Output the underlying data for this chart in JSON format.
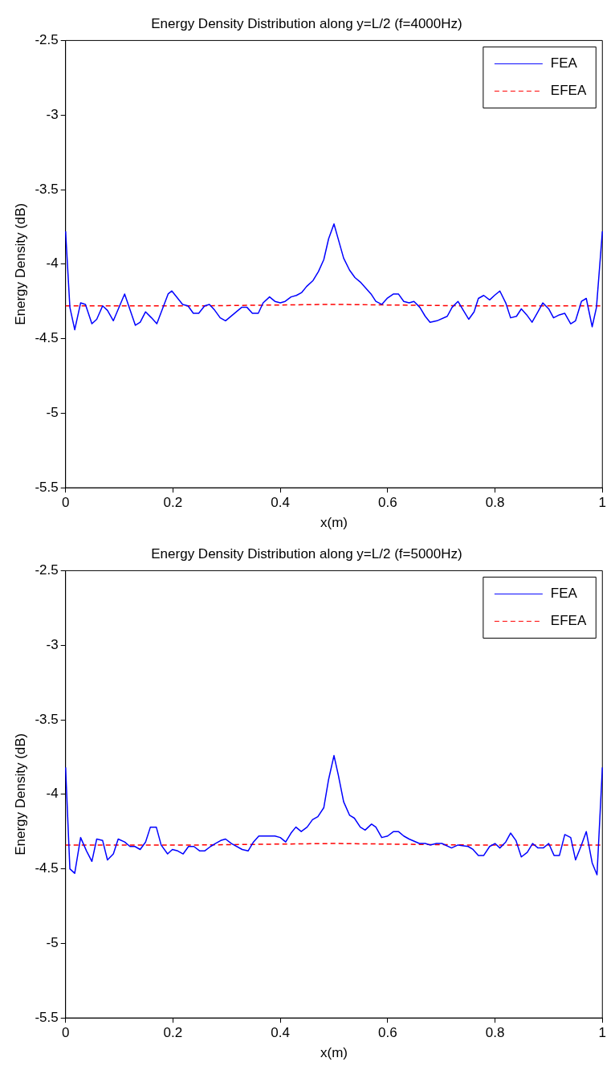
{
  "chart_data": [
    {
      "type": "line",
      "title": "Energy Density Distribution along y=L/2 (f=4000Hz)",
      "xlabel": "x(m)",
      "ylabel": "Energy Density (dB)",
      "xlim": [
        0,
        1
      ],
      "xticks": [
        0,
        0.2,
        0.4,
        0.6,
        0.8,
        1
      ],
      "ylim": [
        -5.5,
        -2.5
      ],
      "yticks": [
        -5.5,
        -5,
        -4.5,
        -4,
        -3.5,
        -3,
        -2.5
      ],
      "grid": false,
      "legend": "top right",
      "marker": "none",
      "series": [
        {
          "name": "FEA",
          "color": "#0000ff",
          "line_style": "solid",
          "x": [
            0,
            0.008,
            0.017,
            0.028,
            0.037,
            0.049,
            0.058,
            0.069,
            0.078,
            0.089,
            0.11,
            0.13,
            0.139,
            0.149,
            0.16,
            0.17,
            0.191,
            0.198,
            0.218,
            0.228,
            0.238,
            0.248,
            0.259,
            0.268,
            0.278,
            0.288,
            0.298,
            0.328,
            0.338,
            0.348,
            0.359,
            0.368,
            0.38,
            0.39,
            0.4,
            0.409,
            0.42,
            0.43,
            0.44,
            0.449,
            0.461,
            0.471,
            0.481,
            0.49,
            0.5,
            0.507,
            0.518,
            0.529,
            0.539,
            0.549,
            0.559,
            0.569,
            0.578,
            0.589,
            0.599,
            0.611,
            0.62,
            0.63,
            0.64,
            0.649,
            0.66,
            0.67,
            0.679,
            0.692,
            0.711,
            0.72,
            0.731,
            0.741,
            0.751,
            0.761,
            0.769,
            0.779,
            0.79,
            0.799,
            0.809,
            0.82,
            0.829,
            0.84,
            0.849,
            0.859,
            0.869,
            0.88,
            0.889,
            0.9,
            0.909,
            0.92,
            0.93,
            0.941,
            0.95,
            0.961,
            0.97,
            0.981,
            0.989,
            1
          ],
          "values": [
            -3.78,
            -4.29,
            -4.44,
            -4.26,
            -4.27,
            -4.4,
            -4.37,
            -4.28,
            -4.31,
            -4.38,
            -4.2,
            -4.41,
            -4.39,
            -4.32,
            -4.36,
            -4.4,
            -4.2,
            -4.18,
            -4.27,
            -4.28,
            -4.33,
            -4.33,
            -4.28,
            -4.27,
            -4.31,
            -4.36,
            -4.38,
            -4.29,
            -4.29,
            -4.33,
            -4.33,
            -4.26,
            -4.22,
            -4.25,
            -4.26,
            -4.25,
            -4.22,
            -4.21,
            -4.19,
            -4.15,
            -4.11,
            -4.05,
            -3.97,
            -3.83,
            -3.73,
            -3.82,
            -3.96,
            -4.04,
            -4.09,
            -4.12,
            -4.16,
            -4.2,
            -4.25,
            -4.27,
            -4.23,
            -4.2,
            -4.2,
            -4.25,
            -4.26,
            -4.25,
            -4.29,
            -4.35,
            -4.39,
            -4.38,
            -4.35,
            -4.29,
            -4.25,
            -4.31,
            -4.37,
            -4.32,
            -4.23,
            -4.21,
            -4.24,
            -4.21,
            -4.18,
            -4.26,
            -4.36,
            -4.35,
            -4.3,
            -4.34,
            -4.39,
            -4.32,
            -4.26,
            -4.3,
            -4.36,
            -4.34,
            -4.33,
            -4.4,
            -4.38,
            -4.25,
            -4.23,
            -4.42,
            -4.29,
            -3.78
          ]
        },
        {
          "name": "EFEA",
          "color": "#ff0000",
          "line_style": "dashed",
          "x": [
            0,
            0.25,
            0.5,
            0.75,
            1
          ],
          "values": [
            -4.28,
            -4.28,
            -4.27,
            -4.28,
            -4.28
          ]
        }
      ]
    },
    {
      "type": "line",
      "title": "Energy Density Distribution along y=L/2 (f=5000Hz)",
      "xlabel": "x(m)",
      "ylabel": "Energy Density (dB)",
      "xlim": [
        0,
        1
      ],
      "xticks": [
        0,
        0.2,
        0.4,
        0.6,
        0.8,
        1
      ],
      "ylim": [
        -5.5,
        -2.5
      ],
      "yticks": [
        -5.5,
        -5,
        -4.5,
        -4,
        -3.5,
        -3,
        -2.5
      ],
      "grid": false,
      "legend": "top right",
      "marker": "none",
      "series": [
        {
          "name": "FEA",
          "color": "#0000ff",
          "line_style": "solid",
          "x": [
            0,
            0.008,
            0.017,
            0.028,
            0.039,
            0.049,
            0.058,
            0.069,
            0.078,
            0.089,
            0.098,
            0.11,
            0.12,
            0.129,
            0.139,
            0.149,
            0.158,
            0.169,
            0.178,
            0.19,
            0.199,
            0.209,
            0.219,
            0.229,
            0.239,
            0.25,
            0.259,
            0.27,
            0.279,
            0.289,
            0.298,
            0.309,
            0.329,
            0.34,
            0.35,
            0.36,
            0.39,
            0.4,
            0.41,
            0.42,
            0.429,
            0.439,
            0.45,
            0.46,
            0.47,
            0.481,
            0.49,
            0.5,
            0.508,
            0.518,
            0.529,
            0.538,
            0.549,
            0.558,
            0.57,
            0.578,
            0.589,
            0.6,
            0.611,
            0.62,
            0.63,
            0.64,
            0.659,
            0.67,
            0.679,
            0.691,
            0.701,
            0.719,
            0.731,
            0.75,
            0.759,
            0.769,
            0.779,
            0.79,
            0.8,
            0.809,
            0.82,
            0.829,
            0.839,
            0.849,
            0.86,
            0.87,
            0.88,
            0.89,
            0.9,
            0.91,
            0.92,
            0.93,
            0.941,
            0.95,
            0.96,
            0.97,
            0.981,
            0.99,
            1
          ],
          "values": [
            -3.82,
            -4.5,
            -4.53,
            -4.29,
            -4.38,
            -4.45,
            -4.3,
            -4.31,
            -4.44,
            -4.4,
            -4.3,
            -4.32,
            -4.35,
            -4.35,
            -4.37,
            -4.32,
            -4.22,
            -4.22,
            -4.34,
            -4.4,
            -4.37,
            -4.38,
            -4.4,
            -4.35,
            -4.35,
            -4.38,
            -4.38,
            -4.35,
            -4.33,
            -4.31,
            -4.3,
            -4.33,
            -4.37,
            -4.38,
            -4.32,
            -4.28,
            -4.28,
            -4.29,
            -4.32,
            -4.26,
            -4.22,
            -4.25,
            -4.22,
            -4.17,
            -4.15,
            -4.09,
            -3.9,
            -3.74,
            -3.87,
            -4.05,
            -4.14,
            -4.16,
            -4.22,
            -4.24,
            -4.2,
            -4.22,
            -4.29,
            -4.28,
            -4.25,
            -4.25,
            -4.28,
            -4.3,
            -4.33,
            -4.33,
            -4.34,
            -4.33,
            -4.33,
            -4.36,
            -4.34,
            -4.35,
            -4.37,
            -4.41,
            -4.41,
            -4.35,
            -4.33,
            -4.36,
            -4.32,
            -4.26,
            -4.31,
            -4.42,
            -4.39,
            -4.33,
            -4.36,
            -4.36,
            -4.33,
            -4.41,
            -4.41,
            -4.27,
            -4.29,
            -4.44,
            -4.35,
            -4.25,
            -4.46,
            -4.54,
            -3.82
          ]
        },
        {
          "name": "EFEA",
          "color": "#ff0000",
          "line_style": "dashed",
          "x": [
            0,
            0.25,
            0.5,
            0.75,
            1
          ],
          "values": [
            -4.34,
            -4.34,
            -4.33,
            -4.34,
            -4.34
          ]
        }
      ]
    }
  ]
}
